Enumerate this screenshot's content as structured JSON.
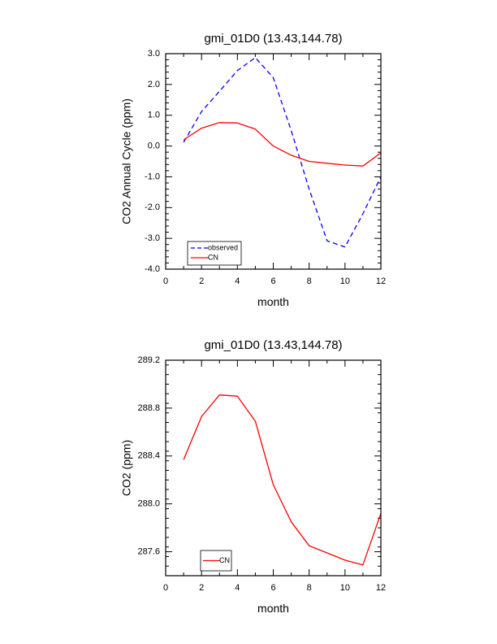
{
  "chart_data": [
    {
      "type": "line",
      "title": "gmi_01D0 (13.43,144.78)",
      "xlabel": "month",
      "ylabel": "CO2 Annual Cycle (ppm)",
      "xlim": [
        0,
        12
      ],
      "ylim": [
        -4,
        3
      ],
      "x_ticks": [
        0,
        2,
        4,
        6,
        8,
        10,
        12
      ],
      "x_tick_labels": [
        "0",
        "2",
        "4",
        "6",
        "8",
        "10",
        "12"
      ],
      "y_ticks": [
        -4,
        -3,
        -2,
        -1,
        0,
        1,
        2,
        3
      ],
      "y_tick_labels": [
        "-4.0",
        "-3.0",
        "-2.0",
        "-1.0",
        "0.0",
        "1.0",
        "2.0",
        "3.0"
      ],
      "legend_position": "bottom-left",
      "series": [
        {
          "name": "observed",
          "color": "#0000ff",
          "dashed": true,
          "x": [
            1,
            2,
            3,
            4,
            5,
            6,
            7,
            8,
            9,
            10,
            11,
            12
          ],
          "values": [
            0.12,
            1.12,
            1.78,
            2.45,
            2.87,
            2.22,
            0.5,
            -1.4,
            -3.08,
            -3.28,
            -2.2,
            -1.0
          ]
        },
        {
          "name": "CN",
          "color": "#ff0000",
          "dashed": false,
          "x": [
            1,
            2,
            3,
            4,
            5,
            6,
            7,
            8,
            9,
            10,
            11,
            12
          ],
          "values": [
            0.2,
            0.58,
            0.76,
            0.75,
            0.55,
            0.0,
            -0.3,
            -0.5,
            -0.56,
            -0.62,
            -0.65,
            -0.22
          ]
        }
      ]
    },
    {
      "type": "line",
      "title": "gmi_01D0 (13.43,144.78)",
      "xlabel": "month",
      "ylabel": "CO2 (ppm)",
      "xlim": [
        0,
        12
      ],
      "ylim": [
        287.4,
        289.2
      ],
      "x_ticks": [
        0,
        2,
        4,
        6,
        8,
        10,
        12
      ],
      "x_tick_labels": [
        "0",
        "2",
        "4",
        "6",
        "8",
        "10",
        "12"
      ],
      "y_ticks": [
        287.6,
        288.0,
        288.4,
        288.8,
        289.2
      ],
      "y_tick_labels": [
        "287.6",
        "288.0",
        "288.4",
        "288.8",
        "289.2"
      ],
      "legend_position": "bottom-left",
      "series": [
        {
          "name": "CN",
          "color": "#ff0000",
          "dashed": false,
          "x": [
            1,
            2,
            3,
            4,
            5,
            6,
            7,
            8,
            9,
            10,
            11,
            12
          ],
          "values": [
            288.37,
            288.73,
            288.91,
            288.9,
            288.69,
            288.16,
            287.85,
            287.65,
            287.59,
            287.53,
            287.49,
            287.92
          ]
        }
      ]
    }
  ]
}
